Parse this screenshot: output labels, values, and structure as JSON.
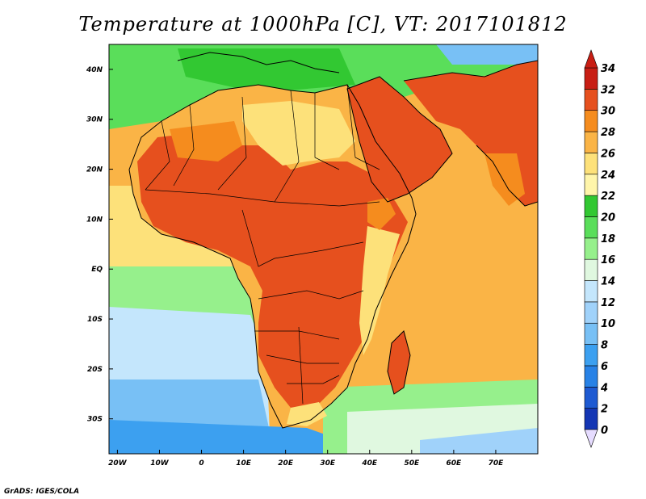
{
  "map": {
    "title": "Temperature at 1000hPa [C], VT: 2017101812",
    "credit": "GrADS: IGES/COLA",
    "lon_range": [
      -22,
      80
    ],
    "lat_range": [
      -37,
      45
    ],
    "lon_ticks": [
      {
        "value": -20,
        "label": "20W"
      },
      {
        "value": -10,
        "label": "10W"
      },
      {
        "value": 0,
        "label": "0"
      },
      {
        "value": 10,
        "label": "10E"
      },
      {
        "value": 20,
        "label": "20E"
      },
      {
        "value": 30,
        "label": "30E"
      },
      {
        "value": 40,
        "label": "40E"
      },
      {
        "value": 50,
        "label": "50E"
      },
      {
        "value": 60,
        "label": "60E"
      },
      {
        "value": 70,
        "label": "70E"
      }
    ],
    "lat_ticks": [
      {
        "value": 40,
        "label": "40N"
      },
      {
        "value": 30,
        "label": "30N"
      },
      {
        "value": 20,
        "label": "20N"
      },
      {
        "value": 10,
        "label": "10N"
      },
      {
        "value": 0,
        "label": "EQ"
      },
      {
        "value": -10,
        "label": "10S"
      },
      {
        "value": -20,
        "label": "20S"
      },
      {
        "value": -30,
        "label": "30S"
      }
    ],
    "colorbar": {
      "levels": [
        {
          "label": "0",
          "color": "#0a0a78"
        },
        {
          "label": "2",
          "color": "#1436b4"
        },
        {
          "label": "4",
          "color": "#1e5ad2"
        },
        {
          "label": "6",
          "color": "#2882e6"
        },
        {
          "label": "8",
          "color": "#3ca0f0"
        },
        {
          "label": "10",
          "color": "#78c0f5"
        },
        {
          "label": "12",
          "color": "#a0d2fa"
        },
        {
          "label": "14",
          "color": "#c4e6fc"
        },
        {
          "label": "16",
          "color": "#e0f8e0"
        },
        {
          "label": "18",
          "color": "#96f08c"
        },
        {
          "label": "20",
          "color": "#5ade5a"
        },
        {
          "label": "22",
          "color": "#32c832"
        },
        {
          "label": "24",
          "color": "#fff5aa"
        },
        {
          "label": "26",
          "color": "#fde17a"
        },
        {
          "label": "28",
          "color": "#fab446"
        },
        {
          "label": "30",
          "color": "#f58c1e"
        },
        {
          "label": "32",
          "color": "#e6501e"
        },
        {
          "label": "34",
          "color": "#c81e14"
        }
      ],
      "under_color": "#e6dcff",
      "over_color": "#c81e14"
    }
  }
}
